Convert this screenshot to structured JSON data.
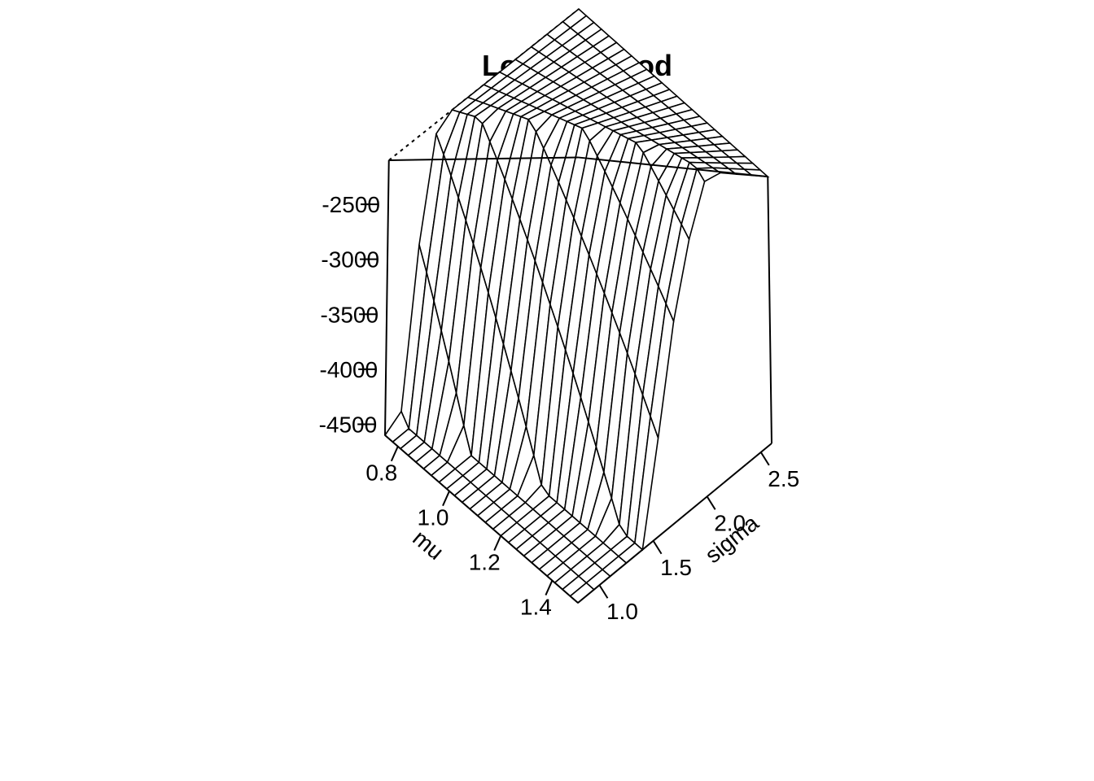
{
  "chart_data": {
    "type": "surface",
    "title": "Loglikelihood",
    "xlabel": "mu",
    "ylabel": "sigma",
    "zlabel": "",
    "x_ticks": [
      "0.8",
      "1.0",
      "1.2",
      "1.4"
    ],
    "y_ticks": [
      "1.0",
      "1.5",
      "2.0",
      "2.5"
    ],
    "z_ticks": [
      "-2500",
      "-3000",
      "-3500",
      "-4000",
      "-4500"
    ],
    "xlim": [
      0.75,
      1.5
    ],
    "ylim": [
      0.8,
      2.6
    ],
    "zlim": [
      -4600,
      -2100
    ],
    "grid_x_lines": 26,
    "grid_y_lines": 13,
    "surface_formula": "z = -n*log(sigma) - S/(2*sigma^2), highest along mu = 0.8 edge and at large sigma, lowest at mu = 1.5, sigma = 0.8"
  }
}
